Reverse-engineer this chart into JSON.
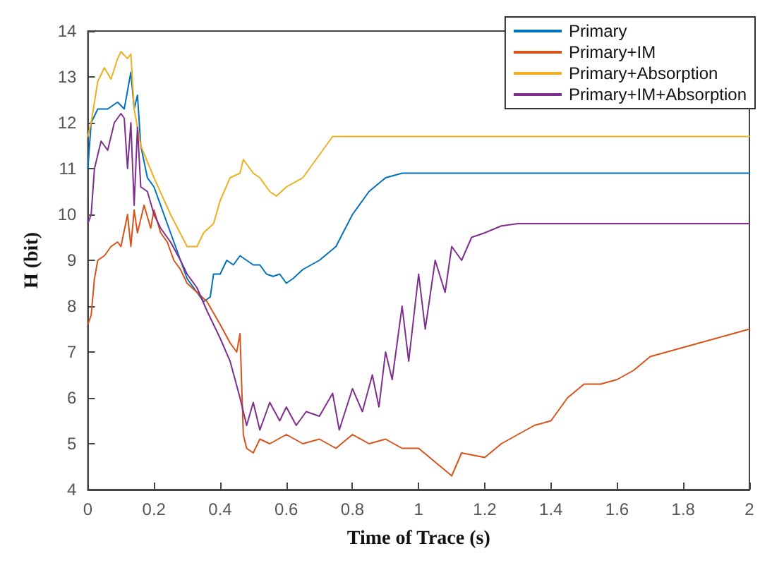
{
  "chart_data": {
    "type": "line",
    "xlabel": "Time of Trace (s)",
    "ylabel": "H (bit)",
    "xlim": [
      0,
      2
    ],
    "xticks": [
      0,
      0.2,
      0.4,
      0.6,
      0.8,
      1,
      1.2,
      1.4,
      1.6,
      1.8,
      2
    ],
    "ylim": [
      4,
      14
    ],
    "yticks": [
      4,
      5,
      6,
      7,
      8,
      9,
      10,
      11,
      12,
      13,
      14
    ],
    "grid": false,
    "legend": "top right",
    "marker": "none",
    "line_style": "solid",
    "series": [
      {
        "name": "Primary",
        "color": "#0072bd",
        "x": [
          0,
          0.01,
          0.03,
          0.06,
          0.09,
          0.11,
          0.12,
          0.13,
          0.14,
          0.15,
          0.16,
          0.18,
          0.2,
          0.22,
          0.25,
          0.28,
          0.3,
          0.33,
          0.35,
          0.37,
          0.38,
          0.4,
          0.42,
          0.44,
          0.46,
          0.48,
          0.5,
          0.52,
          0.54,
          0.56,
          0.58,
          0.6,
          0.62,
          0.65,
          0.7,
          0.75,
          0.8,
          0.85,
          0.9,
          0.95,
          1,
          2
        ],
        "values": [
          11,
          12,
          12.3,
          12.3,
          12.45,
          12.3,
          12.7,
          13.1,
          12.3,
          12.6,
          11.5,
          10.8,
          10.6,
          10.2,
          9.6,
          9,
          8.6,
          8.3,
          8.1,
          8.2,
          8.7,
          8.7,
          9,
          8.9,
          9.1,
          9,
          8.9,
          8.9,
          8.7,
          8.65,
          8.7,
          8.5,
          8.6,
          8.8,
          9,
          9.3,
          10,
          10.5,
          10.8,
          10.9,
          10.9,
          10.9
        ]
      },
      {
        "name": "Primary+IM",
        "color": "#d95319",
        "x": [
          0,
          0.01,
          0.02,
          0.03,
          0.05,
          0.07,
          0.09,
          0.1,
          0.12,
          0.13,
          0.14,
          0.15,
          0.17,
          0.19,
          0.2,
          0.22,
          0.24,
          0.26,
          0.28,
          0.3,
          0.33,
          0.36,
          0.4,
          0.43,
          0.45,
          0.46,
          0.47,
          0.48,
          0.5,
          0.52,
          0.55,
          0.6,
          0.65,
          0.7,
          0.75,
          0.8,
          0.85,
          0.9,
          0.95,
          1,
          1.05,
          1.1,
          1.13,
          1.2,
          1.25,
          1.3,
          1.35,
          1.4,
          1.45,
          1.5,
          1.55,
          1.6,
          1.65,
          1.7,
          1.75,
          1.8,
          1.85,
          1.9,
          1.95,
          2
        ],
        "values": [
          7.6,
          7.8,
          8.6,
          9,
          9.1,
          9.3,
          9.4,
          9.3,
          10,
          9.3,
          10.1,
          9.6,
          10.2,
          9.7,
          10.1,
          9.6,
          9.4,
          9,
          8.8,
          8.5,
          8.3,
          8.1,
          7.6,
          7.2,
          7,
          7.4,
          5.2,
          4.9,
          4.8,
          5.1,
          5,
          5.2,
          5,
          5.1,
          4.9,
          5.2,
          5,
          5.1,
          4.9,
          4.9,
          4.6,
          4.3,
          4.8,
          4.7,
          5,
          5.2,
          5.4,
          5.5,
          6,
          6.3,
          6.3,
          6.4,
          6.6,
          6.9,
          7,
          7.1,
          7.2,
          7.3,
          7.4,
          7.5
        ]
      },
      {
        "name": "Primary+Absorption",
        "color": "#edb120",
        "x": [
          0,
          0.01,
          0.03,
          0.05,
          0.07,
          0.09,
          0.1,
          0.12,
          0.13,
          0.14,
          0.16,
          0.2,
          0.25,
          0.3,
          0.33,
          0.35,
          0.38,
          0.4,
          0.43,
          0.46,
          0.47,
          0.5,
          0.52,
          0.55,
          0.57,
          0.6,
          0.65,
          0.7,
          0.74,
          2
        ],
        "values": [
          11.7,
          12,
          12.9,
          13.2,
          12.95,
          13.4,
          13.55,
          13.4,
          13.5,
          12.3,
          11.5,
          10.8,
          10,
          9.3,
          9.3,
          9.6,
          9.8,
          10.3,
          10.8,
          10.9,
          11.2,
          10.9,
          10.8,
          10.5,
          10.4,
          10.6,
          10.8,
          11.3,
          11.7,
          11.7
        ]
      },
      {
        "name": "Primary+IM+Absorption",
        "color": "#7e2f8e",
        "x": [
          0,
          0.01,
          0.02,
          0.04,
          0.06,
          0.08,
          0.1,
          0.11,
          0.12,
          0.13,
          0.14,
          0.15,
          0.16,
          0.18,
          0.2,
          0.22,
          0.25,
          0.28,
          0.3,
          0.33,
          0.36,
          0.4,
          0.43,
          0.46,
          0.48,
          0.5,
          0.52,
          0.55,
          0.58,
          0.6,
          0.63,
          0.66,
          0.7,
          0.74,
          0.76,
          0.8,
          0.83,
          0.86,
          0.88,
          0.9,
          0.92,
          0.95,
          0.97,
          1,
          1.02,
          1.05,
          1.08,
          1.1,
          1.13,
          1.16,
          1.2,
          1.25,
          1.3,
          2
        ],
        "values": [
          9.8,
          10,
          11,
          11.6,
          11.4,
          12,
          12.2,
          12.1,
          11,
          12,
          10.2,
          11.9,
          10.6,
          10.5,
          10,
          9.7,
          9.4,
          9,
          8.7,
          8.4,
          7.9,
          7.3,
          6.8,
          6,
          5.4,
          5.9,
          5.3,
          5.9,
          5.5,
          5.8,
          5.4,
          5.7,
          5.6,
          6.1,
          5.3,
          6.2,
          5.7,
          6.5,
          5.8,
          7,
          6.4,
          8,
          6.8,
          8.7,
          7.5,
          9,
          8.3,
          9.3,
          9,
          9.5,
          9.6,
          9.75,
          9.8,
          9.8
        ]
      }
    ]
  }
}
